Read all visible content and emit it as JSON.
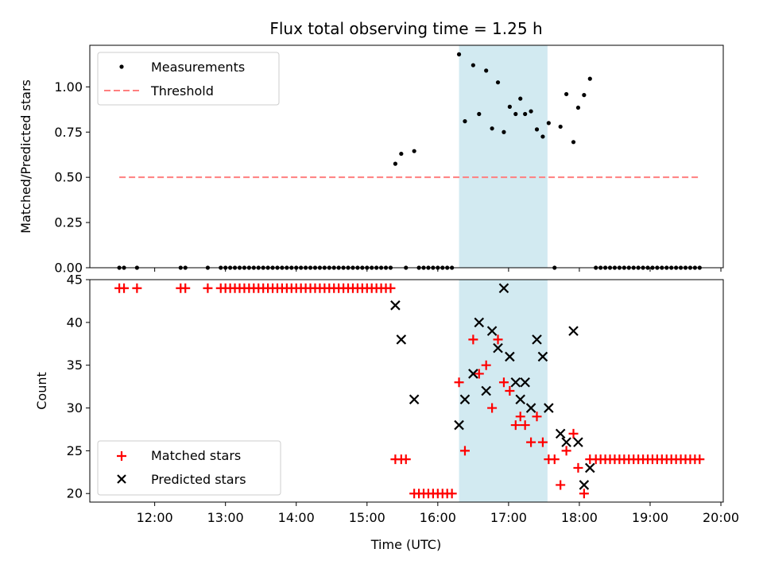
{
  "chart_data": [
    {
      "type": "scatter",
      "title": "Flux total observing time = 1.25 h",
      "xlabel": "",
      "ylabel": "Matched/Predicted stars",
      "xlim": [
        "11:05",
        "20:02"
      ],
      "ylim": [
        0,
        1.23
      ],
      "yticks": [
        0.0,
        0.25,
        0.5,
        0.75,
        1.0
      ],
      "ytick_labels": [
        "0.00",
        "0.25",
        "0.50",
        "0.75",
        "1.00"
      ],
      "grid": false,
      "legend_position": "upper-left",
      "shaded_interval": [
        "16:18",
        "17:33"
      ],
      "series": [
        {
          "name": "Measurements",
          "marker": "dot",
          "color": "#000000",
          "points": [
            [
              "11:30",
              0
            ],
            [
              "11:34",
              0
            ],
            [
              "11:45",
              0
            ],
            [
              "12:22",
              0
            ],
            [
              "12:26",
              0
            ],
            [
              "12:45",
              0
            ],
            [
              "12:56",
              0
            ],
            [
              "13:00",
              0
            ],
            [
              "13:04",
              0
            ],
            [
              "13:08",
              0
            ],
            [
              "13:12",
              0
            ],
            [
              "13:16",
              0
            ],
            [
              "13:20",
              0
            ],
            [
              "13:24",
              0
            ],
            [
              "13:28",
              0
            ],
            [
              "13:32",
              0
            ],
            [
              "13:36",
              0
            ],
            [
              "13:40",
              0
            ],
            [
              "13:44",
              0
            ],
            [
              "13:48",
              0
            ],
            [
              "13:52",
              0
            ],
            [
              "13:56",
              0
            ],
            [
              "14:00",
              0
            ],
            [
              "14:04",
              0
            ],
            [
              "14:08",
              0
            ],
            [
              "14:12",
              0
            ],
            [
              "14:16",
              0
            ],
            [
              "14:20",
              0
            ],
            [
              "14:24",
              0
            ],
            [
              "14:28",
              0
            ],
            [
              "14:32",
              0
            ],
            [
              "14:36",
              0
            ],
            [
              "14:40",
              0
            ],
            [
              "14:44",
              0
            ],
            [
              "14:48",
              0
            ],
            [
              "14:52",
              0
            ],
            [
              "14:56",
              0
            ],
            [
              "15:00",
              0
            ],
            [
              "15:04",
              0
            ],
            [
              "15:08",
              0
            ],
            [
              "15:12",
              0
            ],
            [
              "15:16",
              0
            ],
            [
              "15:20",
              0
            ],
            [
              "15:24",
              0.575
            ],
            [
              "15:29",
              0.63
            ],
            [
              "15:40",
              0.645
            ],
            [
              "15:33",
              0
            ],
            [
              "15:44",
              0
            ],
            [
              "15:48",
              0
            ],
            [
              "15:52",
              0
            ],
            [
              "15:56",
              0
            ],
            [
              "16:00",
              0
            ],
            [
              "16:04",
              0
            ],
            [
              "16:08",
              0
            ],
            [
              "16:12",
              0
            ],
            [
              "16:18",
              1.18
            ],
            [
              "16:23",
              0.81
            ],
            [
              "16:30",
              1.12
            ],
            [
              "16:35",
              0.85
            ],
            [
              "16:41",
              1.09
            ],
            [
              "16:46",
              0.77
            ],
            [
              "16:51",
              1.025
            ],
            [
              "16:56",
              0.75
            ],
            [
              "17:01",
              0.89
            ],
            [
              "17:06",
              0.85
            ],
            [
              "17:10",
              0.935
            ],
            [
              "17:14",
              0.85
            ],
            [
              "17:19",
              0.865
            ],
            [
              "17:24",
              0.765
            ],
            [
              "17:29",
              0.725
            ],
            [
              "17:34",
              0.8
            ],
            [
              "17:39",
              0
            ],
            [
              "17:44",
              0.78
            ],
            [
              "17:49",
              0.96
            ],
            [
              "17:55",
              0.695
            ],
            [
              "17:59",
              0.885
            ],
            [
              "18:04",
              0.955
            ],
            [
              "18:09",
              1.045
            ],
            [
              "18:14",
              0
            ],
            [
              "18:18",
              0
            ],
            [
              "18:22",
              0
            ],
            [
              "18:26",
              0
            ],
            [
              "18:30",
              0
            ],
            [
              "18:34",
              0
            ],
            [
              "18:38",
              0
            ],
            [
              "18:42",
              0
            ],
            [
              "18:46",
              0
            ],
            [
              "18:50",
              0
            ],
            [
              "18:54",
              0
            ],
            [
              "18:58",
              0
            ],
            [
              "19:02",
              0
            ],
            [
              "19:06",
              0
            ],
            [
              "19:10",
              0
            ],
            [
              "19:14",
              0
            ],
            [
              "19:18",
              0
            ],
            [
              "19:22",
              0
            ],
            [
              "19:26",
              0
            ],
            [
              "19:30",
              0
            ],
            [
              "19:34",
              0
            ],
            [
              "19:38",
              0
            ],
            [
              "19:42",
              0
            ]
          ]
        },
        {
          "name": "Threshold",
          "marker": "dashed-line",
          "color": "#ff7f7f",
          "points": [
            [
              "11:30",
              0.5
            ],
            [
              "19:42",
              0.5
            ]
          ]
        }
      ]
    },
    {
      "type": "scatter",
      "title": "",
      "xlabel": "Time (UTC)",
      "ylabel": "Count",
      "xlim": [
        "11:05",
        "20:02"
      ],
      "ylim": [
        19,
        45
      ],
      "yticks": [
        20,
        25,
        30,
        35,
        40,
        45
      ],
      "ytick_labels": [
        "20",
        "25",
        "30",
        "35",
        "40",
        "45"
      ],
      "xticks": [
        "12:00",
        "13:00",
        "14:00",
        "15:00",
        "16:00",
        "17:00",
        "18:00",
        "19:00",
        "20:00"
      ],
      "grid": false,
      "legend_position": "lower-left",
      "shaded_interval": [
        "16:18",
        "17:33"
      ],
      "series": [
        {
          "name": "Matched stars",
          "marker": "plus",
          "color": "#ff0000",
          "points": [
            [
              "11:30",
              44
            ],
            [
              "11:34",
              44
            ],
            [
              "11:45",
              44
            ],
            [
              "12:22",
              44
            ],
            [
              "12:26",
              44
            ],
            [
              "12:45",
              44
            ],
            [
              "12:56",
              44
            ],
            [
              "13:00",
              44
            ],
            [
              "13:04",
              44
            ],
            [
              "13:08",
              44
            ],
            [
              "13:12",
              44
            ],
            [
              "13:16",
              44
            ],
            [
              "13:20",
              44
            ],
            [
              "13:24",
              44
            ],
            [
              "13:28",
              44
            ],
            [
              "13:32",
              44
            ],
            [
              "13:36",
              44
            ],
            [
              "13:40",
              44
            ],
            [
              "13:44",
              44
            ],
            [
              "13:48",
              44
            ],
            [
              "13:52",
              44
            ],
            [
              "13:56",
              44
            ],
            [
              "14:00",
              44
            ],
            [
              "14:04",
              44
            ],
            [
              "14:08",
              44
            ],
            [
              "14:12",
              44
            ],
            [
              "14:16",
              44
            ],
            [
              "14:20",
              44
            ],
            [
              "14:24",
              44
            ],
            [
              "14:28",
              44
            ],
            [
              "14:32",
              44
            ],
            [
              "14:36",
              44
            ],
            [
              "14:40",
              44
            ],
            [
              "14:44",
              44
            ],
            [
              "14:48",
              44
            ],
            [
              "14:52",
              44
            ],
            [
              "14:56",
              44
            ],
            [
              "15:00",
              44
            ],
            [
              "15:04",
              44
            ],
            [
              "15:08",
              44
            ],
            [
              "15:12",
              44
            ],
            [
              "15:16",
              44
            ],
            [
              "15:20",
              44
            ],
            [
              "15:24",
              24
            ],
            [
              "15:29",
              24
            ],
            [
              "15:33",
              24
            ],
            [
              "15:40",
              20
            ],
            [
              "15:44",
              20
            ],
            [
              "15:48",
              20
            ],
            [
              "15:52",
              20
            ],
            [
              "15:56",
              20
            ],
            [
              "16:00",
              20
            ],
            [
              "16:04",
              20
            ],
            [
              "16:08",
              20
            ],
            [
              "16:12",
              20
            ],
            [
              "16:18",
              33
            ],
            [
              "16:23",
              25
            ],
            [
              "16:30",
              38
            ],
            [
              "16:35",
              34
            ],
            [
              "16:41",
              35
            ],
            [
              "16:46",
              30
            ],
            [
              "16:51",
              38
            ],
            [
              "16:56",
              33
            ],
            [
              "17:01",
              32
            ],
            [
              "17:06",
              28
            ],
            [
              "17:10",
              29
            ],
            [
              "17:14",
              28
            ],
            [
              "17:19",
              26
            ],
            [
              "17:24",
              29
            ],
            [
              "17:29",
              26
            ],
            [
              "17:34",
              24
            ],
            [
              "17:39",
              24
            ],
            [
              "17:44",
              21
            ],
            [
              "17:49",
              25
            ],
            [
              "17:55",
              27
            ],
            [
              "17:59",
              23
            ],
            [
              "18:04",
              20
            ],
            [
              "18:09",
              24
            ],
            [
              "18:14",
              24
            ],
            [
              "18:18",
              24
            ],
            [
              "18:22",
              24
            ],
            [
              "18:26",
              24
            ],
            [
              "18:30",
              24
            ],
            [
              "18:34",
              24
            ],
            [
              "18:38",
              24
            ],
            [
              "18:42",
              24
            ],
            [
              "18:46",
              24
            ],
            [
              "18:50",
              24
            ],
            [
              "18:54",
              24
            ],
            [
              "18:58",
              24
            ],
            [
              "19:02",
              24
            ],
            [
              "19:06",
              24
            ],
            [
              "19:10",
              24
            ],
            [
              "19:14",
              24
            ],
            [
              "19:18",
              24
            ],
            [
              "19:22",
              24
            ],
            [
              "19:26",
              24
            ],
            [
              "19:30",
              24
            ],
            [
              "19:34",
              24
            ],
            [
              "19:38",
              24
            ],
            [
              "19:42",
              24
            ]
          ]
        },
        {
          "name": "Predicted stars",
          "marker": "x",
          "color": "#000000",
          "points": [
            [
              "15:24",
              42
            ],
            [
              "15:29",
              38
            ],
            [
              "15:40",
              31
            ],
            [
              "16:18",
              28
            ],
            [
              "16:23",
              31
            ],
            [
              "16:30",
              34
            ],
            [
              "16:35",
              40
            ],
            [
              "16:41",
              32
            ],
            [
              "16:46",
              39
            ],
            [
              "16:51",
              37
            ],
            [
              "16:56",
              44
            ],
            [
              "17:01",
              36
            ],
            [
              "17:06",
              33
            ],
            [
              "17:10",
              31
            ],
            [
              "17:14",
              33
            ],
            [
              "17:19",
              30
            ],
            [
              "17:24",
              38
            ],
            [
              "17:29",
              36
            ],
            [
              "17:34",
              30
            ],
            [
              "17:44",
              27
            ],
            [
              "17:49",
              26
            ],
            [
              "17:55",
              39
            ],
            [
              "17:59",
              26
            ],
            [
              "18:04",
              21
            ],
            [
              "18:09",
              23
            ]
          ]
        }
      ]
    }
  ]
}
